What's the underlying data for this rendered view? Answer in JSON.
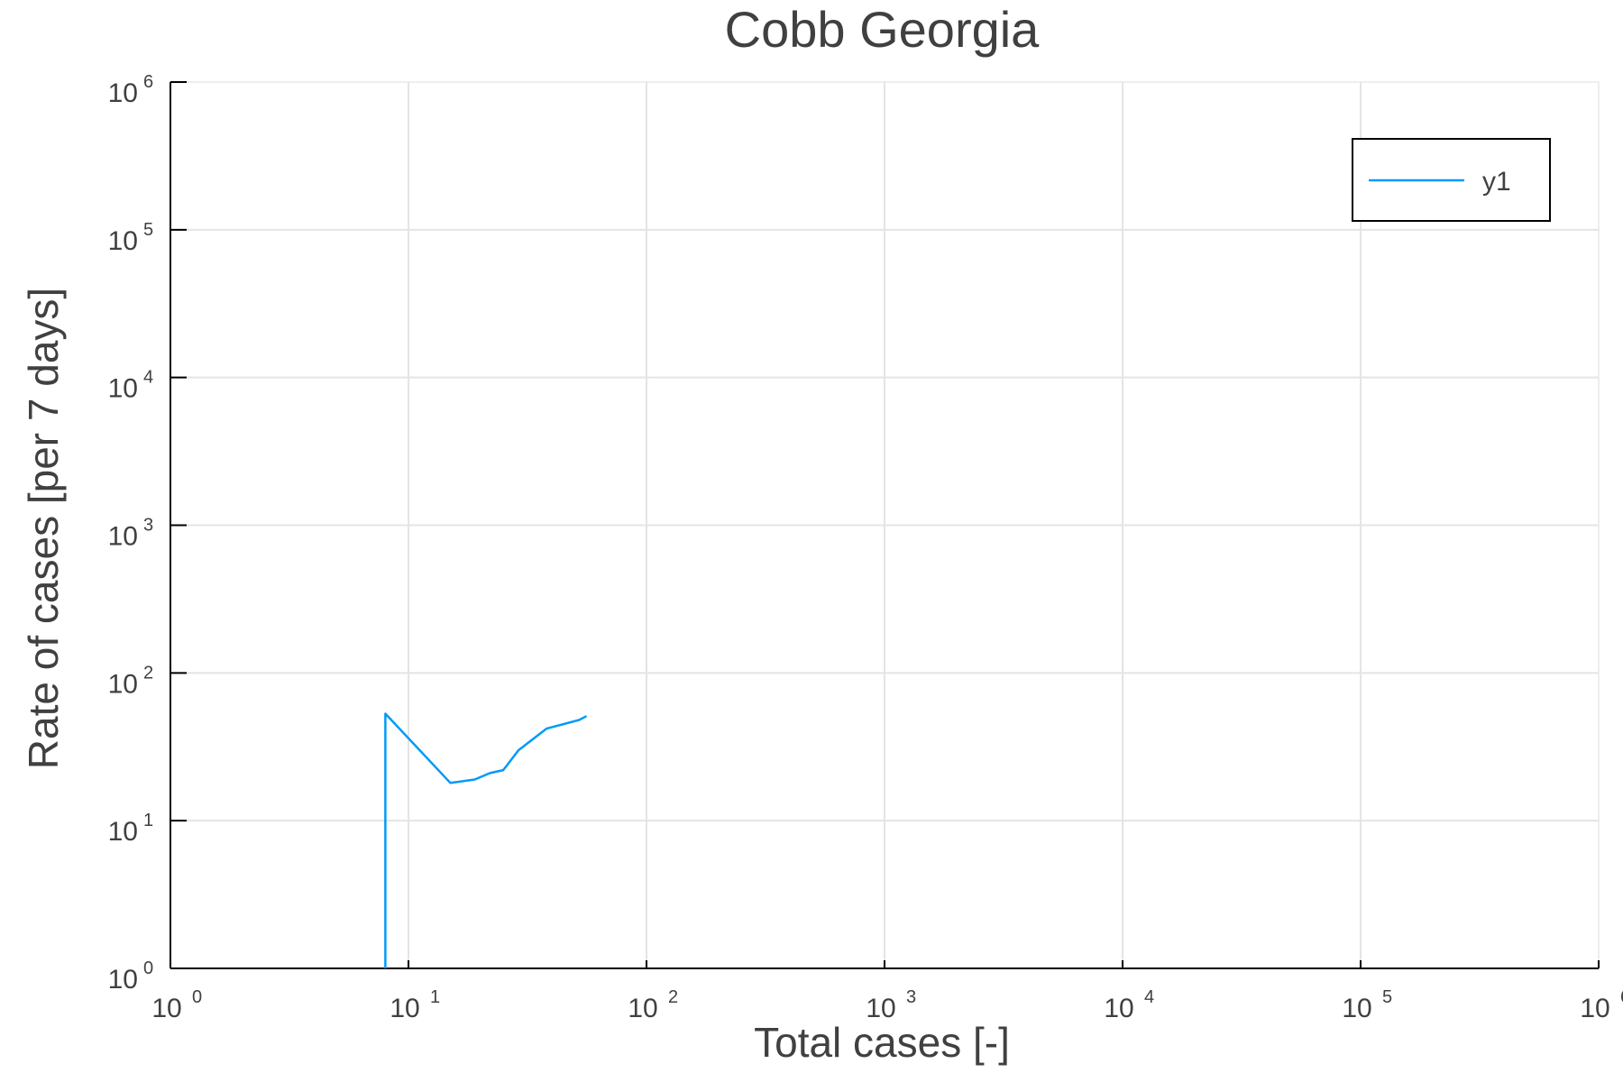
{
  "chart_data": {
    "type": "line",
    "title": "Cobb Georgia",
    "xlabel": "Total cases [-]",
    "ylabel": "Rate of cases [per 7 days]",
    "xscale": "log",
    "yscale": "log",
    "xlim": [
      1,
      1000000
    ],
    "ylim": [
      1,
      1000000
    ],
    "grid": true,
    "legend_position": "top-right",
    "x_ticks": [
      {
        "base": "10",
        "exp": "0",
        "value": 1
      },
      {
        "base": "10",
        "exp": "1",
        "value": 10
      },
      {
        "base": "10",
        "exp": "2",
        "value": 100
      },
      {
        "base": "10",
        "exp": "3",
        "value": 1000
      },
      {
        "base": "10",
        "exp": "4",
        "value": 10000
      },
      {
        "base": "10",
        "exp": "5",
        "value": 100000
      },
      {
        "base": "10",
        "exp": "6",
        "value": 1000000
      }
    ],
    "y_ticks": [
      {
        "base": "10",
        "exp": "0",
        "value": 1
      },
      {
        "base": "10",
        "exp": "1",
        "value": 10
      },
      {
        "base": "10",
        "exp": "2",
        "value": 100
      },
      {
        "base": "10",
        "exp": "3",
        "value": 1000
      },
      {
        "base": "10",
        "exp": "4",
        "value": 10000
      },
      {
        "base": "10",
        "exp": "5",
        "value": 100000
      },
      {
        "base": "10",
        "exp": "6",
        "value": 1000000
      }
    ],
    "series": [
      {
        "name": "y1",
        "color": "#009af9",
        "x": [
          8,
          8,
          15,
          19,
          22,
          25,
          29,
          38,
          52,
          56
        ],
        "y": [
          1,
          53,
          18,
          19,
          21,
          22,
          30,
          42,
          48,
          51
        ]
      }
    ]
  }
}
